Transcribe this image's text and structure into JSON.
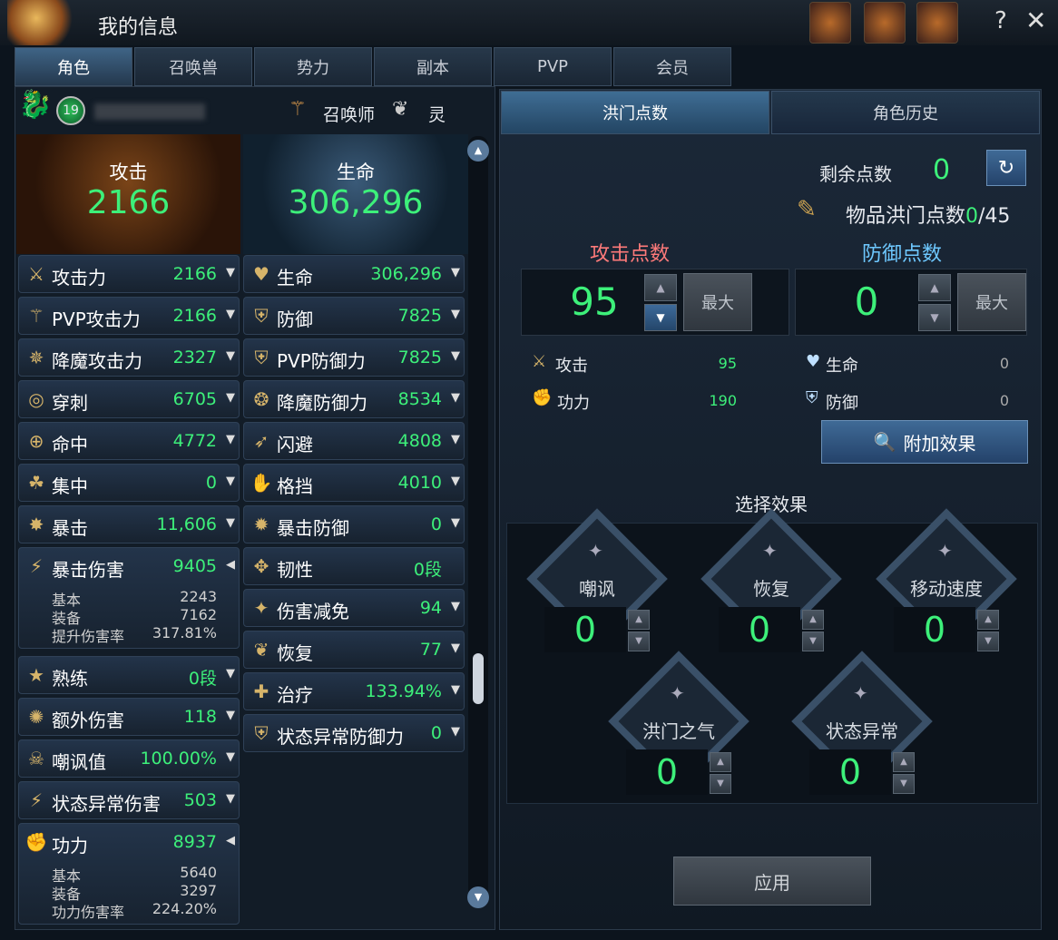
{
  "window": {
    "title": "我的信息",
    "help": "?",
    "close": "✕"
  },
  "tabs": [
    {
      "label": "角色",
      "active": true
    },
    {
      "label": "召唤兽"
    },
    {
      "label": "势力"
    },
    {
      "label": "副本"
    },
    {
      "label": "PVP"
    },
    {
      "label": "会员"
    }
  ],
  "character": {
    "level": "19",
    "summoner_label": "召唤师",
    "spirit_label": "灵"
  },
  "summary": {
    "attack_label": "攻击",
    "attack": "2166",
    "hp_label": "生命",
    "hp": "306,296"
  },
  "stats_left": [
    {
      "icon": "crossed-swords-icon",
      "glyph": "⚔",
      "label": "攻击力",
      "value": "2166"
    },
    {
      "icon": "pvp-attack-icon",
      "glyph": "⚚",
      "label": "PVP攻击力",
      "value": "2166"
    },
    {
      "icon": "demon-attack-icon",
      "glyph": "✵",
      "label": "降魔攻击力",
      "value": "2327"
    },
    {
      "icon": "pierce-icon",
      "glyph": "◎",
      "label": "穿刺",
      "value": "6705"
    },
    {
      "icon": "crosshair-icon",
      "glyph": "⊕",
      "label": "命中",
      "value": "4772"
    },
    {
      "icon": "focus-icon",
      "glyph": "☘",
      "label": "集中",
      "value": "0"
    },
    {
      "icon": "critical-icon",
      "glyph": "✸",
      "label": "暴击",
      "value": "11,606"
    },
    {
      "icon": "critical-damage-icon",
      "glyph": "⚡",
      "label": "暴击伤害",
      "value": "9405",
      "expanded": true,
      "details": [
        {
          "label": "基本",
          "value": "2243"
        },
        {
          "label": "装备",
          "value": "7162"
        },
        {
          "label": "提升伤害率",
          "value": "317.81%"
        }
      ]
    },
    {
      "icon": "mastery-icon",
      "glyph": "★",
      "label": "熟练",
      "value": "0段"
    },
    {
      "icon": "extra-damage-icon",
      "glyph": "✺",
      "label": "额外伤害",
      "value": "118"
    },
    {
      "icon": "skull-icon",
      "glyph": "☠",
      "label": "嘲讽值",
      "value": "100.00%"
    },
    {
      "icon": "status-damage-icon",
      "glyph": "⚡",
      "label": "状态异常伤害",
      "value": "503"
    },
    {
      "icon": "fist-icon",
      "glyph": "✊",
      "label": "功力",
      "value": "8937",
      "expanded": true,
      "details": [
        {
          "label": "基本",
          "value": "5640"
        },
        {
          "label": "装备",
          "value": "3297"
        },
        {
          "label": "功力伤害率",
          "value": "224.20%"
        }
      ]
    }
  ],
  "stats_right": [
    {
      "icon": "heart-icon",
      "glyph": "♥",
      "label": "生命",
      "value": "306,296"
    },
    {
      "icon": "shield-icon",
      "glyph": "⛨",
      "label": "防御",
      "value": "7825"
    },
    {
      "icon": "pvp-shield-icon",
      "glyph": "⛨",
      "label": "PVP防御力",
      "value": "7825"
    },
    {
      "icon": "demon-defense-icon",
      "glyph": "❂",
      "label": "降魔防御力",
      "value": "8534"
    },
    {
      "icon": "evasion-icon",
      "glyph": "➶",
      "label": "闪避",
      "value": "4808"
    },
    {
      "icon": "block-icon",
      "glyph": "✋",
      "label": "格挡",
      "value": "4010"
    },
    {
      "icon": "critical-defense-icon",
      "glyph": "✹",
      "label": "暴击防御",
      "value": "0"
    },
    {
      "icon": "toughness-icon",
      "glyph": "✥",
      "label": "韧性",
      "value": "0段",
      "noarrow": true
    },
    {
      "icon": "damage-reduction-icon",
      "glyph": "✦",
      "label": "伤害减免",
      "value": "94"
    },
    {
      "icon": "recovery-icon",
      "glyph": "❦",
      "label": "恢复",
      "value": "77"
    },
    {
      "icon": "heal-icon",
      "glyph": "✚",
      "label": "治疗",
      "value": "133.94%"
    },
    {
      "icon": "status-defense-icon",
      "glyph": "⛨",
      "label": "状态异常防御力",
      "value": "0"
    }
  ],
  "right": {
    "tabs": [
      {
        "label": "洪门点数",
        "active": true
      },
      {
        "label": "角色历史"
      }
    ],
    "remaining_label": "剩余点数",
    "remaining": "0",
    "item_points_label": "物品洪门点数",
    "item_points": "0",
    "item_points_max": "/45",
    "attack_points_label": "攻击点数",
    "attack_points": "95",
    "defense_points_label": "防御点数",
    "defense_points": "0",
    "max_label": "最大",
    "attack_rows": [
      {
        "label": "攻击",
        "value": "95"
      },
      {
        "label": "功力",
        "value": "190"
      }
    ],
    "defense_rows": [
      {
        "label": "生命",
        "value": "0"
      },
      {
        "label": "防御",
        "value": "0"
      }
    ],
    "extra_effect_label": "附加效果",
    "select_effect_label": "选择效果",
    "effects": [
      {
        "label": "嘲讽",
        "value": "0"
      },
      {
        "label": "恢复",
        "value": "0"
      },
      {
        "label": "移动速度",
        "value": "0"
      },
      {
        "label": "洪门之气",
        "value": "0"
      },
      {
        "label": "状态异常",
        "value": "0"
      }
    ],
    "apply_label": "应用",
    "colors": {
      "attack": "#ff7a7a",
      "defense": "#6ec8ff",
      "value": "#3df07a"
    }
  }
}
